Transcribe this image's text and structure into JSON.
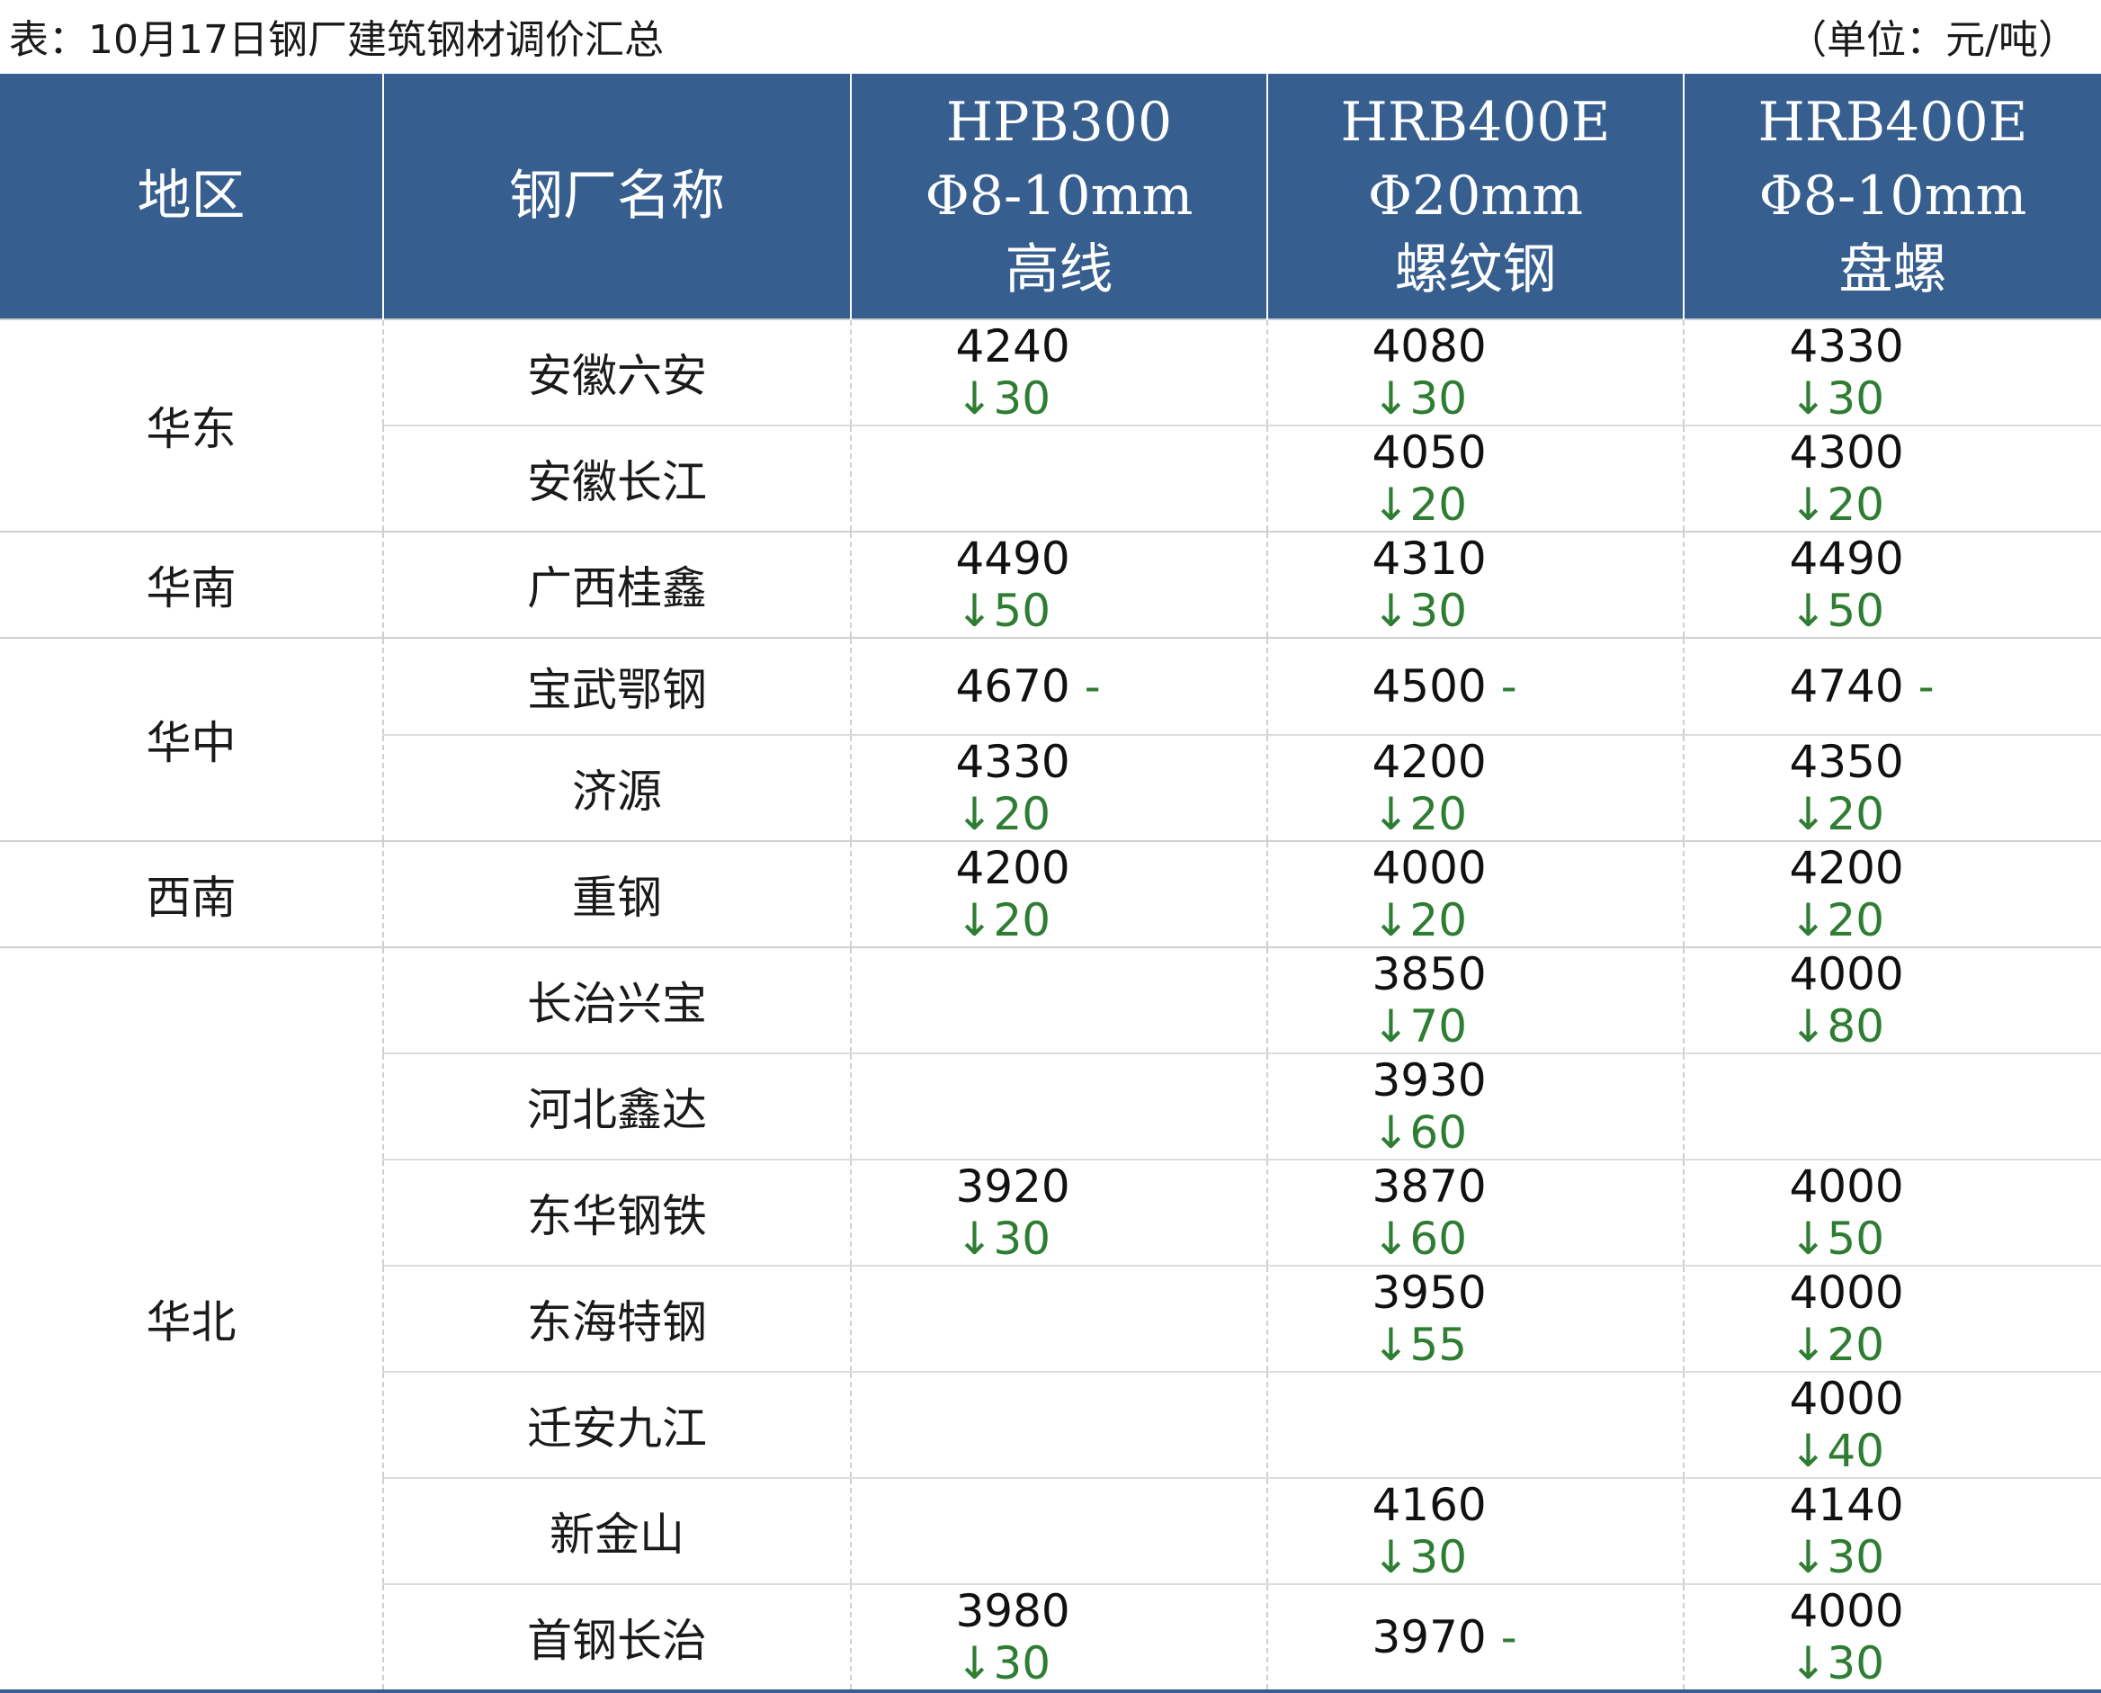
{
  "caption": {
    "title": "表：10月17日钢厂建筑钢材调价汇总",
    "unit": "（单位：元/吨）"
  },
  "headers": {
    "region": "地区",
    "mill": "钢厂名称",
    "col1": [
      "HPB300",
      "Φ8-10mm",
      "高线"
    ],
    "col2": [
      "HRB400E",
      "Φ20mm",
      "螺纹钢"
    ],
    "col3": [
      "HRB400E",
      "Φ8-10mm",
      "盘螺"
    ]
  },
  "rows": [
    {
      "region": "华东",
      "rowspan": 2,
      "mill": "安徽六安",
      "p1": {
        "v": "4240",
        "c": "↓30"
      },
      "p2": {
        "v": "4080",
        "c": "↓30"
      },
      "p3": {
        "v": "4330",
        "c": "↓30"
      }
    },
    {
      "mill": "安徽长江",
      "p1": null,
      "p2": {
        "v": "4050",
        "c": "↓20"
      },
      "p3": {
        "v": "4300",
        "c": "↓20"
      }
    },
    {
      "region": "华南",
      "rowspan": 1,
      "mill": "广西桂鑫",
      "p1": {
        "v": "4490",
        "c": "↓50"
      },
      "p2": {
        "v": "4310",
        "c": "↓30"
      },
      "p3": {
        "v": "4490",
        "c": "↓50"
      }
    },
    {
      "region": "华中",
      "rowspan": 2,
      "mill": "宝武鄂钢",
      "p1": {
        "v": "4670",
        "c": "-"
      },
      "p2": {
        "v": "4500",
        "c": "-"
      },
      "p3": {
        "v": "4740",
        "c": "-"
      }
    },
    {
      "mill": "济源",
      "p1": {
        "v": "4330",
        "c": "↓20"
      },
      "p2": {
        "v": "4200",
        "c": "↓20"
      },
      "p3": {
        "v": "4350",
        "c": "↓20"
      }
    },
    {
      "region": "西南",
      "rowspan": 1,
      "mill": "重钢",
      "p1": {
        "v": "4200",
        "c": "↓20"
      },
      "p2": {
        "v": "4000",
        "c": "↓20"
      },
      "p3": {
        "v": "4200",
        "c": "↓20"
      }
    },
    {
      "region": "华北",
      "rowspan": 7,
      "mill": "长治兴宝",
      "p1": null,
      "p2": {
        "v": "3850",
        "c": "↓70"
      },
      "p3": {
        "v": "4000",
        "c": "↓80"
      }
    },
    {
      "mill": "河北鑫达",
      "p1": null,
      "p2": {
        "v": "3930",
        "c": "↓60"
      },
      "p3": null
    },
    {
      "mill": "东华钢铁",
      "p1": {
        "v": "3920",
        "c": "↓30"
      },
      "p2": {
        "v": "3870",
        "c": "↓60"
      },
      "p3": {
        "v": "4000",
        "c": "↓50"
      }
    },
    {
      "mill": "东海特钢",
      "p1": null,
      "p2": {
        "v": "3950",
        "c": "↓55"
      },
      "p3": {
        "v": "4000",
        "c": "↓20"
      }
    },
    {
      "mill": "迁安九江",
      "p1": null,
      "p2": null,
      "p3": {
        "v": "4000",
        "c": "↓40"
      }
    },
    {
      "mill": "新金山",
      "p1": null,
      "p2": {
        "v": "4160",
        "c": "↓30"
      },
      "p3": {
        "v": "4140",
        "c": "↓30"
      }
    },
    {
      "mill": "首钢长治",
      "p1": {
        "v": "3980",
        "c": "↓30"
      },
      "p2": {
        "v": "3970",
        "c": "-"
      },
      "p3": {
        "v": "4000",
        "c": "↓30"
      }
    }
  ]
}
